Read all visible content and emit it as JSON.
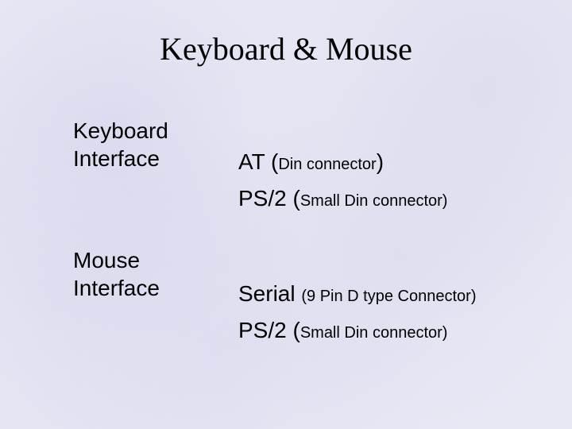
{
  "colors": {
    "background_base": "#e8e8f5",
    "text": "#000000"
  },
  "typography": {
    "title_font": "Times New Roman",
    "body_font": "Arial",
    "title_size_pt": 40,
    "label_size_pt": 28,
    "main_term_size_pt": 28,
    "detail_paren_size_pt": 20
  },
  "title": "Keyboard & Mouse",
  "keyboard": {
    "label_line1": "Keyboard",
    "label_line2": "Interface",
    "row1": {
      "term": "AT ",
      "paren_open": "(",
      "detail": "Din connector",
      "paren_close": ")"
    },
    "row2": {
      "term": "PS/2  ",
      "paren_open": "(",
      "detail": "Small Din connector)",
      "paren_close": ""
    }
  },
  "mouse": {
    "label_line1": "Mouse",
    "label_line2": "Interface",
    "row1": {
      "term": "Serial  ",
      "detail": "(9 Pin D type Connector)"
    },
    "row2": {
      "term": "PS/2   ",
      "paren_open": "(",
      "detail": "Small Din connector)",
      "paren_close": ""
    }
  }
}
